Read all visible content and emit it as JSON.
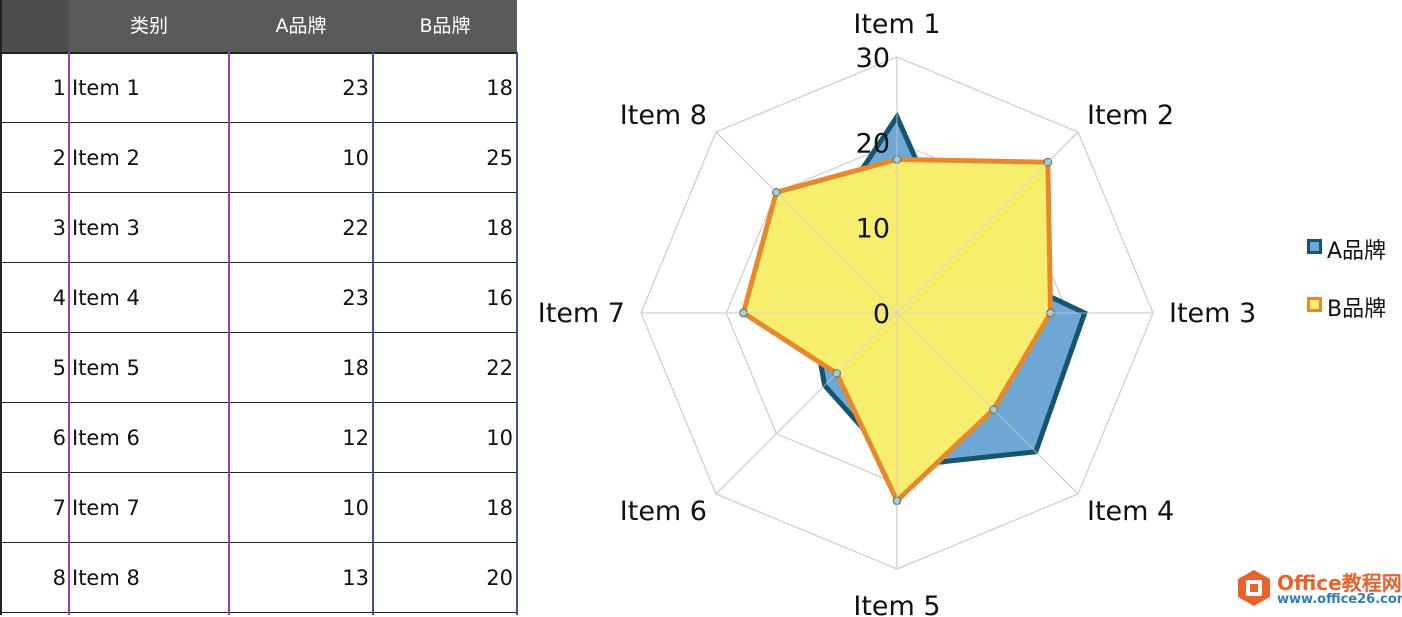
{
  "table": {
    "headers": [
      "",
      "类别",
      "A品牌",
      "B品牌"
    ],
    "rows": [
      {
        "idx": "1",
        "cat": "Item 1",
        "a": "23",
        "b": "18"
      },
      {
        "idx": "2",
        "cat": "Item 2",
        "a": "10",
        "b": "25"
      },
      {
        "idx": "3",
        "cat": "Item 3",
        "a": "22",
        "b": "18"
      },
      {
        "idx": "4",
        "cat": "Item 4",
        "a": "23",
        "b": "16"
      },
      {
        "idx": "5",
        "cat": "Item 5",
        "a": "18",
        "b": "22"
      },
      {
        "idx": "6",
        "cat": "Item 6",
        "a": "12",
        "b": "10"
      },
      {
        "idx": "7",
        "cat": "Item 7",
        "a": "10",
        "b": "18"
      },
      {
        "idx": "8",
        "cat": "Item 8",
        "a": "13",
        "b": "20"
      }
    ]
  },
  "chart_data": {
    "type": "radar",
    "categories": [
      "Item 1",
      "Item 2",
      "Item 3",
      "Item 4",
      "Item 5",
      "Item 6",
      "Item 7",
      "Item 8"
    ],
    "series": [
      {
        "name": "A品牌",
        "values": [
          23,
          10,
          22,
          23,
          18,
          12,
          10,
          13
        ],
        "fill": "#6fa8d6",
        "stroke": "#15556f"
      },
      {
        "name": "B品牌",
        "values": [
          18,
          25,
          18,
          16,
          22,
          10,
          18,
          20
        ],
        "fill": "#f8ee6e",
        "stroke": "#e4892e"
      }
    ],
    "ticks": [
      "0",
      "10",
      "20",
      "30"
    ],
    "rlim": [
      0,
      30
    ],
    "grid": true,
    "legend": "right"
  },
  "colors": {
    "header_bg": "#5a5a5a",
    "grid": "#d0d0d0"
  },
  "watermark": {
    "title": "Office教程网",
    "url": "www.office26.com",
    "icon": "office-logo-icon"
  }
}
